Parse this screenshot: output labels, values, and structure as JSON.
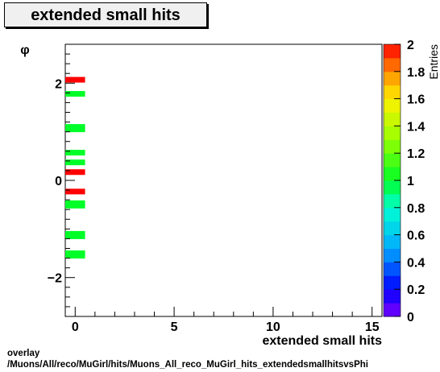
{
  "chart_data": {
    "type": "heatmap",
    "title": "extended small hits",
    "xlabel": "extended small hits",
    "ylabel": "φ",
    "zlabel": "Entries",
    "xlim": [
      -0.5,
      15.5
    ],
    "ylim": [
      -2.8,
      2.8
    ],
    "zlim": [
      0,
      2
    ],
    "x_ticks": [
      0,
      5,
      10,
      15
    ],
    "y_ticks": [
      -2,
      0,
      2
    ],
    "z_ticks": [
      0,
      0.2,
      0.4,
      0.6,
      0.8,
      1,
      1.2,
      1.4,
      1.6,
      1.8,
      2
    ],
    "z_tick_labels": [
      "0",
      "0.2",
      "0.4",
      "0.6",
      "0.8",
      "1",
      "1.2",
      "1.4",
      "1.6",
      "1.8",
      "2"
    ],
    "cells": [
      {
        "x": 0,
        "y": 2.07,
        "value": 2
      },
      {
        "x": 0,
        "y": 1.78,
        "value": 1
      },
      {
        "x": 0,
        "y": 1.1,
        "value": 1
      },
      {
        "x": 0,
        "y": 1.05,
        "value": 1
      },
      {
        "x": 0,
        "y": 0.57,
        "value": 1
      },
      {
        "x": 0,
        "y": 0.37,
        "value": 1
      },
      {
        "x": 0,
        "y": 0.17,
        "value": 2
      },
      {
        "x": 0,
        "y": -0.23,
        "value": 2
      },
      {
        "x": 0,
        "y": -0.47,
        "value": 1
      },
      {
        "x": 0,
        "y": -0.52,
        "value": 1
      },
      {
        "x": 0,
        "y": -1.1,
        "value": 1
      },
      {
        "x": 0,
        "y": -1.15,
        "value": 1
      },
      {
        "x": 0,
        "y": -1.5,
        "value": 1
      },
      {
        "x": 0,
        "y": -1.55,
        "value": 1
      }
    ],
    "grid": false,
    "colorbar": "right"
  },
  "footer": {
    "line1": "overlay",
    "line2": "/Muons/All/reco/MuGirl/hits/Muons_All_reco_MuGirl_hits_extendedsmallhitsvsPhi"
  }
}
